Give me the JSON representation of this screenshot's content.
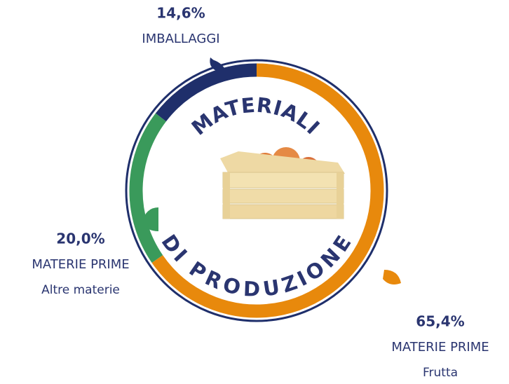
{
  "chart_data": {
    "type": "donut",
    "title": "MATERIALI",
    "subtitle": "DI PRODUZIONE",
    "categories": [
      "MATERIE PRIME",
      "MATERIE PRIME",
      "IMBALLAGGI"
    ],
    "sublabels": [
      "Frutta",
      "Altre materie",
      null
    ],
    "values": [
      65.4,
      20.0,
      14.6
    ],
    "value_labels": [
      "65,4%",
      "20,0%",
      "14,6%"
    ],
    "colors": [
      "#e8890c",
      "#3a9a5b",
      "#1f2f6b"
    ]
  }
}
